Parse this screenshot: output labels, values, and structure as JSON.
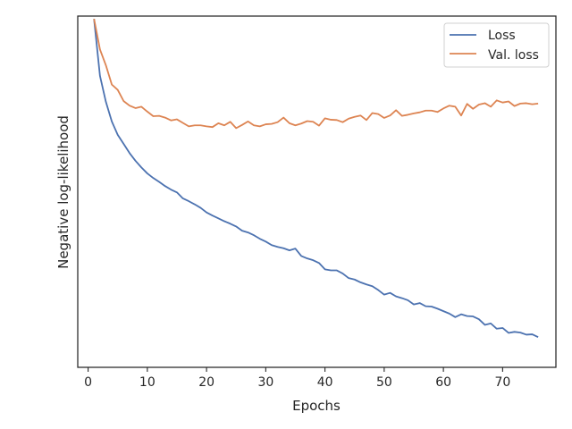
{
  "chart_data": {
    "type": "line",
    "title": "",
    "xlabel": "Epochs",
    "ylabel": "Negative log-likelihood",
    "xlim": [
      -1.75,
      79
    ],
    "ylim": [
      0,
      100
    ],
    "xticks": [
      0,
      10,
      20,
      30,
      40,
      50,
      60,
      70
    ],
    "yticks_shown": false,
    "grid": false,
    "legend_position": "top-right",
    "series": [
      {
        "name": "Loss",
        "color": "#4c72b0",
        "x": [
          1,
          2,
          3,
          4,
          5,
          6,
          7,
          8,
          9,
          10,
          11,
          12,
          13,
          14,
          15,
          16,
          17,
          18,
          19,
          20,
          21,
          22,
          23,
          24,
          25,
          26,
          27,
          28,
          29,
          30,
          31,
          32,
          33,
          34,
          35,
          36,
          37,
          38,
          39,
          40,
          41,
          42,
          43,
          44,
          45,
          46,
          47,
          48,
          49,
          50,
          51,
          52,
          53,
          54,
          55,
          56,
          57,
          58,
          59,
          60,
          61,
          62,
          63,
          64,
          65,
          66,
          67,
          68,
          69,
          70,
          71,
          72,
          73,
          74,
          75,
          76
        ],
        "values": [
          99.2,
          83.0,
          75.6,
          70.0,
          66.2,
          63.6,
          61.0,
          58.8,
          56.9,
          55.2,
          53.9,
          52.8,
          51.6,
          50.6,
          49.8,
          48.1,
          47.3,
          46.4,
          45.4,
          44.1,
          43.2,
          42.4,
          41.6,
          40.9,
          40.1,
          38.9,
          38.4,
          37.6,
          36.6,
          35.8,
          34.8,
          34.3,
          33.9,
          33.3,
          33.8,
          31.7,
          31.0,
          30.5,
          29.7,
          27.9,
          27.6,
          27.6,
          26.7,
          25.4,
          25.0,
          24.2,
          23.6,
          23.1,
          22.0,
          20.7,
          21.2,
          20.2,
          19.7,
          19.1,
          17.9,
          18.3,
          17.4,
          17.3,
          16.7,
          16.0,
          15.3,
          14.3,
          15.1,
          14.6,
          14.5,
          13.7,
          12.1,
          12.5,
          11.0,
          11.2,
          9.8,
          10.1,
          9.9,
          9.3,
          9.4,
          8.6
        ]
      },
      {
        "name": "Val. loss",
        "color": "#dd8452",
        "x": [
          1,
          2,
          3,
          4,
          5,
          6,
          7,
          8,
          9,
          10,
          11,
          12,
          13,
          14,
          15,
          16,
          17,
          18,
          19,
          20,
          21,
          22,
          23,
          24,
          25,
          26,
          27,
          28,
          29,
          30,
          31,
          32,
          33,
          34,
          35,
          36,
          37,
          38,
          39,
          40,
          41,
          42,
          43,
          44,
          45,
          46,
          47,
          48,
          49,
          50,
          51,
          52,
          53,
          54,
          55,
          56,
          57,
          58,
          59,
          60,
          61,
          62,
          63,
          64,
          65,
          66,
          67,
          68,
          69,
          70,
          71,
          72,
          73,
          74,
          75,
          76
        ],
        "values": [
          99.2,
          90.5,
          86.0,
          80.5,
          79.0,
          75.8,
          74.5,
          73.8,
          74.2,
          72.8,
          71.5,
          71.6,
          71.1,
          70.3,
          70.6,
          69.6,
          68.6,
          68.9,
          68.9,
          68.6,
          68.4,
          69.5,
          68.9,
          69.9,
          68.1,
          69.0,
          70.0,
          68.9,
          68.6,
          69.2,
          69.3,
          69.8,
          71.1,
          69.5,
          68.9,
          69.4,
          70.1,
          69.9,
          68.8,
          70.9,
          70.5,
          70.4,
          69.8,
          70.8,
          71.3,
          71.7,
          70.4,
          72.4,
          72.1,
          71.0,
          71.7,
          73.2,
          71.6,
          71.9,
          72.3,
          72.6,
          73.1,
          73.1,
          72.7,
          73.7,
          74.5,
          74.2,
          71.7,
          75.0,
          73.6,
          74.8,
          75.2,
          74.2,
          76.0,
          75.4,
          75.7,
          74.4,
          75.1,
          75.2,
          74.9,
          75.1
        ]
      }
    ]
  }
}
